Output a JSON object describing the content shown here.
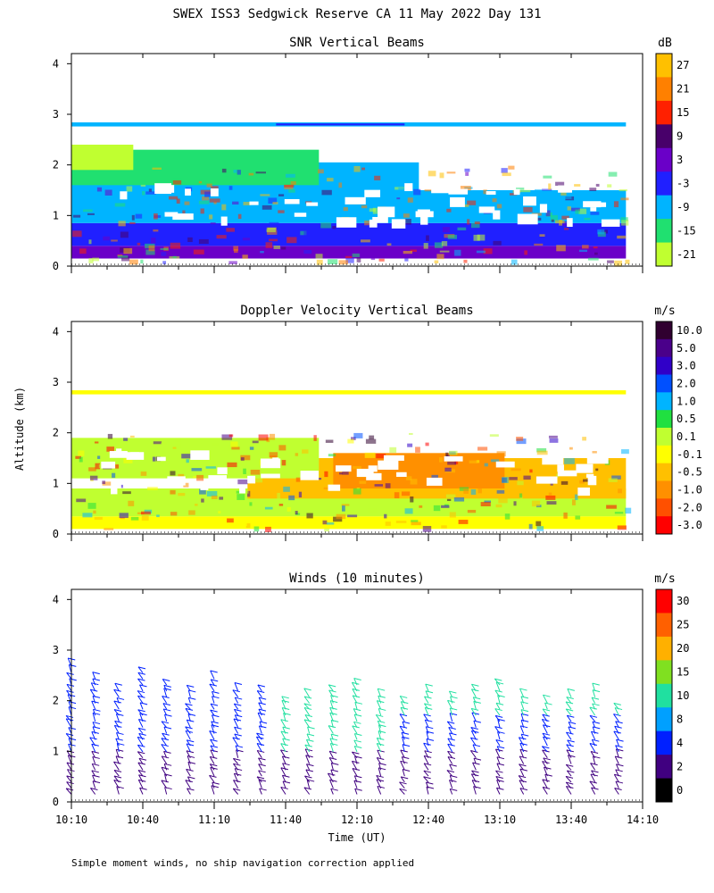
{
  "figure": {
    "title": "SWEX ISS3 Sedgwick Reserve CA  11 May 2022 Day 131",
    "footnote": "Simple moment winds, no ship navigation correction applied"
  },
  "chart_data": [
    {
      "type": "heatmap",
      "title": "SNR Vertical Beams",
      "ylabel": "",
      "xlabel": "",
      "ylim": [
        0,
        4
      ],
      "yticks": [
        0,
        1,
        2,
        3,
        4
      ],
      "colorbar": {
        "unit": "dB",
        "labels": [
          "27",
          "21",
          "15",
          "9",
          "3",
          "-3",
          "-9",
          "-15",
          "-21"
        ],
        "colors": [
          "#ffc000",
          "#ff8000",
          "#ff2000",
          "#48006a",
          "#6a00c8",
          "#2020ff",
          "#00b4ff",
          "#20e070",
          "#c0ff30"
        ]
      },
      "regions": [
        {
          "x": [
            10.17,
            14.05
          ],
          "y": [
            0.15,
            0.4
          ],
          "value": "3"
        },
        {
          "x": [
            10.17,
            14.05
          ],
          "y": [
            0.4,
            0.85
          ],
          "value": "-3"
        },
        {
          "x": [
            10.17,
            14.05
          ],
          "y": [
            0.85,
            1.5
          ],
          "value": "-9"
        },
        {
          "x": [
            10.17,
            12.6
          ],
          "y": [
            1.5,
            2.05
          ],
          "value": "-9"
        },
        {
          "x": [
            10.17,
            11.9
          ],
          "y": [
            1.6,
            2.3
          ],
          "value": "-15"
        },
        {
          "x": [
            10.17,
            10.6
          ],
          "y": [
            1.9,
            2.4
          ],
          "value": "-21"
        },
        {
          "x": [
            10.17,
            14.05
          ],
          "y": [
            2.76,
            2.84
          ],
          "value": "-9"
        },
        {
          "x": [
            11.6,
            12.5
          ],
          "y": [
            2.78,
            2.82
          ],
          "value": "-3"
        }
      ]
    },
    {
      "type": "heatmap",
      "title": "Doppler Velocity Vertical Beams",
      "ylabel": "Altitude (km)",
      "xlabel": "",
      "ylim": [
        0,
        4
      ],
      "yticks": [
        0,
        1,
        2,
        3,
        4
      ],
      "colorbar": {
        "unit": "m/s",
        "labels": [
          "10.0",
          "5.0",
          "3.0",
          "2.0",
          "1.0",
          "0.5",
          "0.1",
          "-0.1",
          "-0.5",
          "-1.0",
          "-2.0",
          "-3.0"
        ],
        "colors": [
          "#300030",
          "#4a008a",
          "#3000c8",
          "#0050ff",
          "#00b4ff",
          "#20e040",
          "#c0ff30",
          "#ffff00",
          "#ffc000",
          "#ff9000",
          "#ff5000",
          "#ff0000"
        ]
      },
      "regions": [
        {
          "x": [
            10.17,
            14.05
          ],
          "y": [
            0.1,
            0.35
          ],
          "value": "-0.1"
        },
        {
          "x": [
            10.17,
            14.05
          ],
          "y": [
            0.35,
            0.9
          ],
          "value": "0.1"
        },
        {
          "x": [
            11.4,
            14.05
          ],
          "y": [
            0.7,
            1.5
          ],
          "value": "-0.5"
        },
        {
          "x": [
            12.0,
            13.2
          ],
          "y": [
            0.9,
            1.6
          ],
          "value": "-1.0"
        },
        {
          "x": [
            10.17,
            11.9
          ],
          "y": [
            1.1,
            1.9
          ],
          "value": "0.1"
        },
        {
          "x": [
            10.17,
            14.05
          ],
          "y": [
            2.76,
            2.84
          ],
          "value": "-0.1"
        }
      ]
    },
    {
      "type": "barbs",
      "title": "Winds (10 minutes)",
      "ylabel": "",
      "xlabel": "Time (UT)",
      "xlim": [
        10.17,
        14.17
      ],
      "xticks": [
        "10:10",
        "10:40",
        "11:10",
        "11:40",
        "12:10",
        "12:40",
        "13:10",
        "13:40",
        "14:10"
      ],
      "ylim": [
        0,
        4
      ],
      "yticks": [
        0,
        1,
        2,
        3,
        4
      ],
      "colorbar": {
        "unit": "m/s",
        "labels": [
          "30",
          "25",
          "20",
          "15",
          "10",
          "8",
          "4",
          "2",
          "0"
        ],
        "colors": [
          "#ff0000",
          "#ff6000",
          "#ffb000",
          "#80e020",
          "#20e0a0",
          "#00a0ff",
          "#0020ff",
          "#400080",
          "#000000"
        ]
      },
      "profile_times": [
        "10:10",
        "10:20",
        "10:30",
        "10:40",
        "10:50",
        "11:00",
        "11:10",
        "11:20",
        "11:30",
        "11:40",
        "11:50",
        "12:00",
        "12:10",
        "12:20",
        "12:30",
        "12:40",
        "12:50",
        "13:00",
        "13:10",
        "13:20",
        "13:30",
        "13:40",
        "13:50",
        "14:00"
      ],
      "profile_tops_km": [
        2.7,
        2.5,
        2.3,
        2.6,
        2.4,
        2.3,
        2.5,
        2.3,
        2.2,
        2.0,
        2.1,
        2.2,
        2.4,
        2.1,
        2.0,
        2.2,
        2.1,
        2.3,
        2.4,
        2.1,
        2.0,
        2.1,
        2.2,
        1.9
      ]
    }
  ]
}
